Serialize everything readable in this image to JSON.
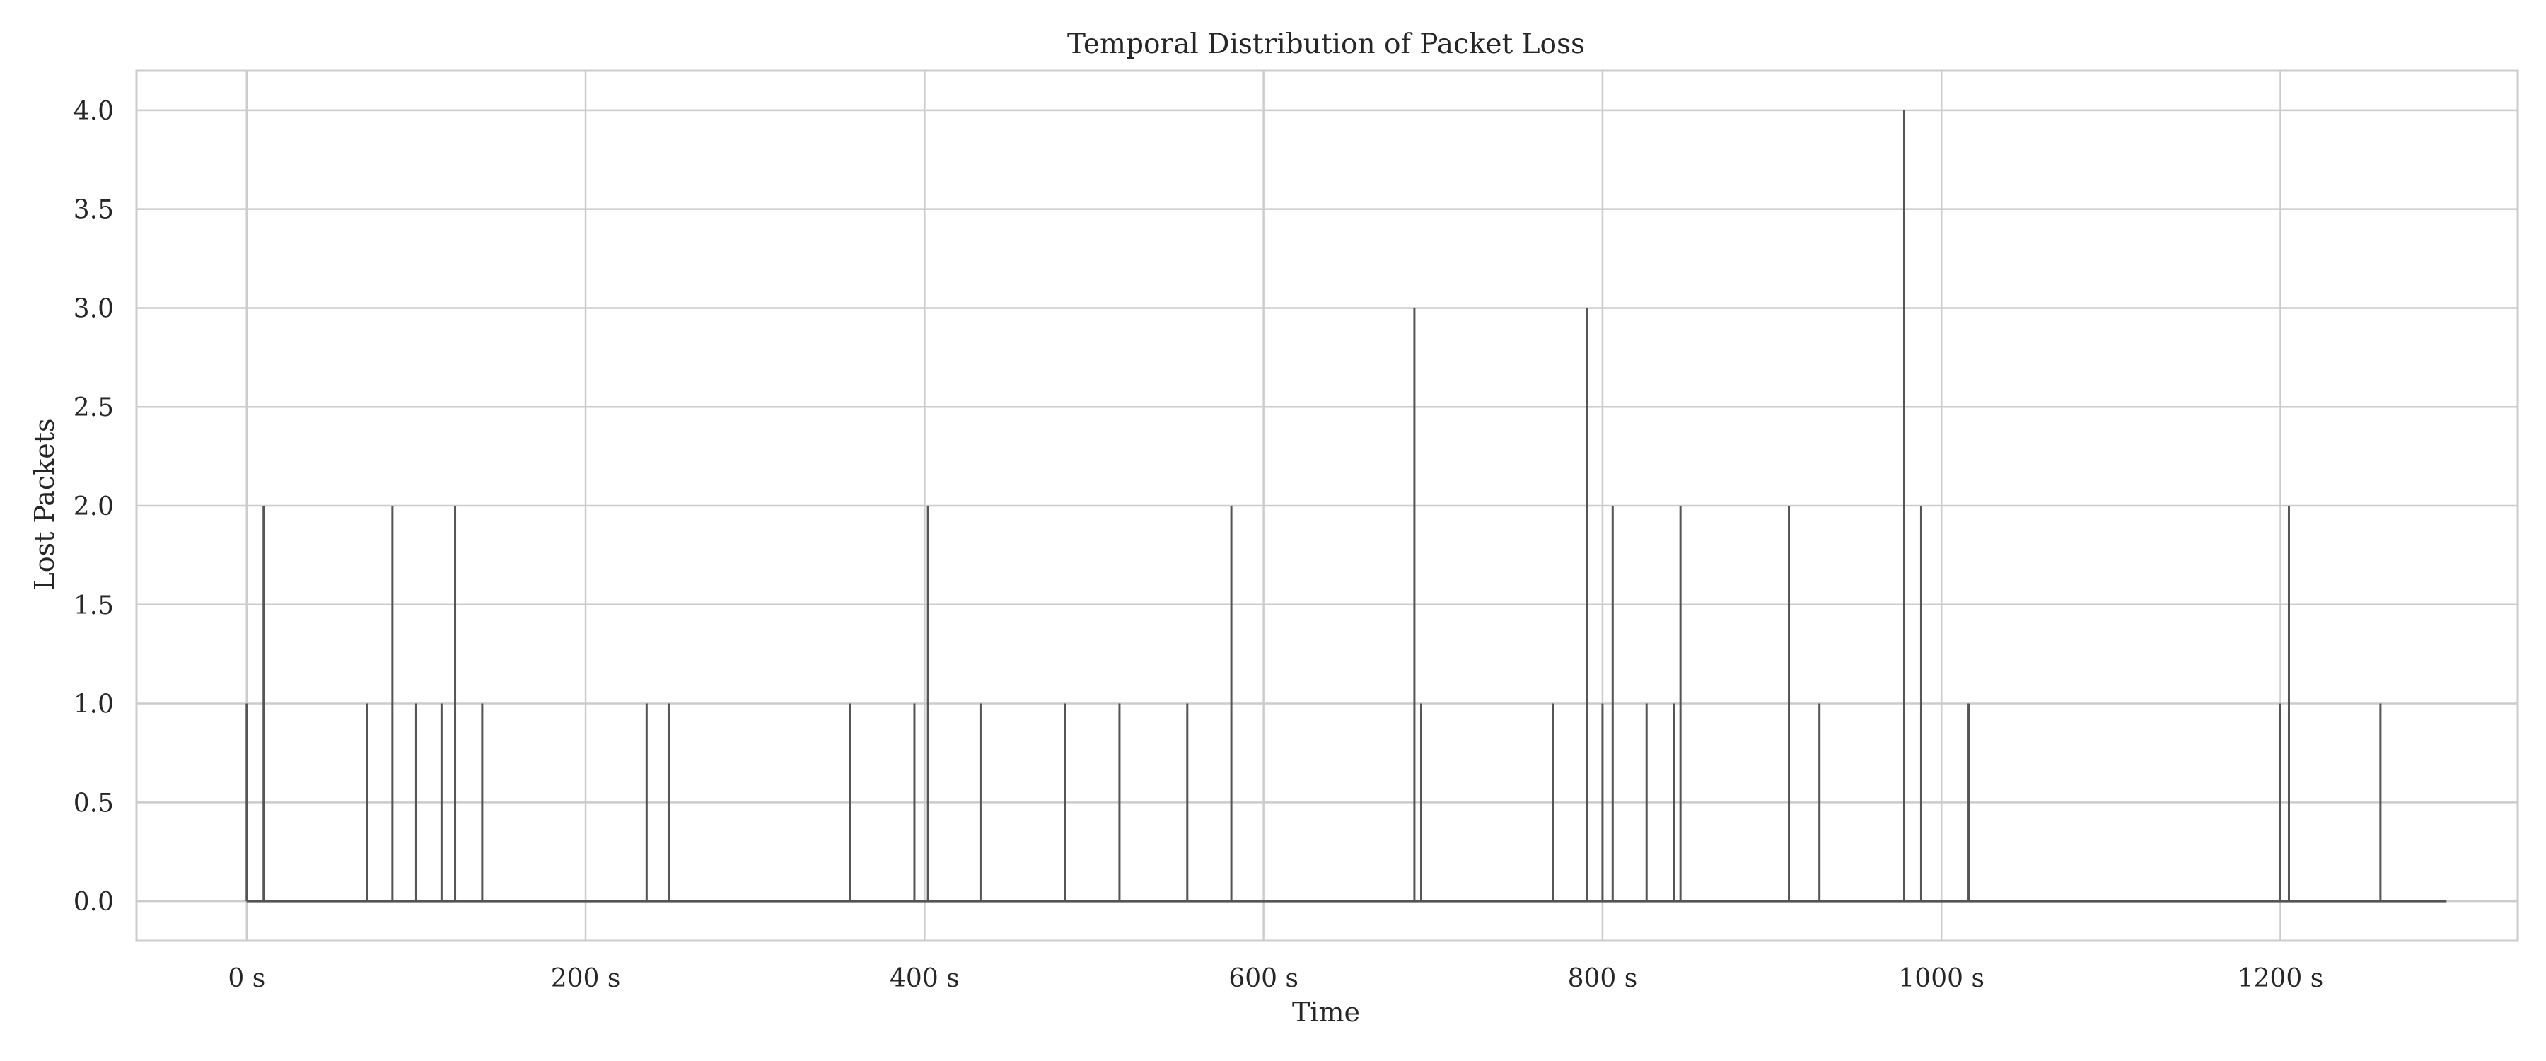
{
  "colors": {
    "line": "#555555",
    "grid": "#cccccc",
    "frame": "#cccccc",
    "background": "#ffffff",
    "text": "#262626"
  },
  "chart_data": {
    "type": "line",
    "title": "Temporal Distribution of Packet Loss",
    "xlabel": "Time",
    "ylabel": "Lost Packets",
    "xlim": [
      -65,
      1340
    ],
    "ylim": [
      -0.2,
      4.2
    ],
    "grid": true,
    "legend": "none",
    "x_ticks": [
      {
        "value": 0,
        "label": "0 s"
      },
      {
        "value": 200,
        "label": "200 s"
      },
      {
        "value": 400,
        "label": "400 s"
      },
      {
        "value": 600,
        "label": "600 s"
      },
      {
        "value": 800,
        "label": "800 s"
      },
      {
        "value": 1000,
        "label": "1000 s"
      },
      {
        "value": 1200,
        "label": "1200 s"
      }
    ],
    "y_ticks": [
      {
        "value": 0.0,
        "label": "0.0"
      },
      {
        "value": 0.5,
        "label": "0.5"
      },
      {
        "value": 1.0,
        "label": "1.0"
      },
      {
        "value": 1.5,
        "label": "1.5"
      },
      {
        "value": 2.0,
        "label": "2.0"
      },
      {
        "value": 2.5,
        "label": "2.5"
      },
      {
        "value": 3.0,
        "label": "3.0"
      },
      {
        "value": 3.5,
        "label": "3.5"
      },
      {
        "value": 4.0,
        "label": "4.0"
      }
    ],
    "time_range": [
      0,
      1298
    ],
    "series": [
      {
        "events": [
          {
            "x": 0,
            "y": 1
          },
          {
            "x": 10,
            "y": 2
          },
          {
            "x": 71,
            "y": 1
          },
          {
            "x": 86,
            "y": 2
          },
          {
            "x": 100,
            "y": 1
          },
          {
            "x": 115,
            "y": 1
          },
          {
            "x": 123,
            "y": 2
          },
          {
            "x": 139,
            "y": 1
          },
          {
            "x": 236,
            "y": 1
          },
          {
            "x": 249,
            "y": 1
          },
          {
            "x": 356,
            "y": 1
          },
          {
            "x": 394,
            "y": 1
          },
          {
            "x": 402,
            "y": 2
          },
          {
            "x": 433,
            "y": 1
          },
          {
            "x": 483,
            "y": 1
          },
          {
            "x": 515,
            "y": 1
          },
          {
            "x": 555,
            "y": 1
          },
          {
            "x": 581,
            "y": 2
          },
          {
            "x": 689,
            "y": 3
          },
          {
            "x": 693,
            "y": 1
          },
          {
            "x": 771,
            "y": 1
          },
          {
            "x": 791,
            "y": 3
          },
          {
            "x": 800,
            "y": 1
          },
          {
            "x": 806,
            "y": 2
          },
          {
            "x": 826,
            "y": 1
          },
          {
            "x": 842,
            "y": 1
          },
          {
            "x": 846,
            "y": 2
          },
          {
            "x": 910,
            "y": 2
          },
          {
            "x": 928,
            "y": 1
          },
          {
            "x": 978,
            "y": 4
          },
          {
            "x": 988,
            "y": 2
          },
          {
            "x": 1016,
            "y": 1
          },
          {
            "x": 1200,
            "y": 1
          },
          {
            "x": 1205,
            "y": 2
          },
          {
            "x": 1259,
            "y": 1
          }
        ]
      }
    ]
  }
}
